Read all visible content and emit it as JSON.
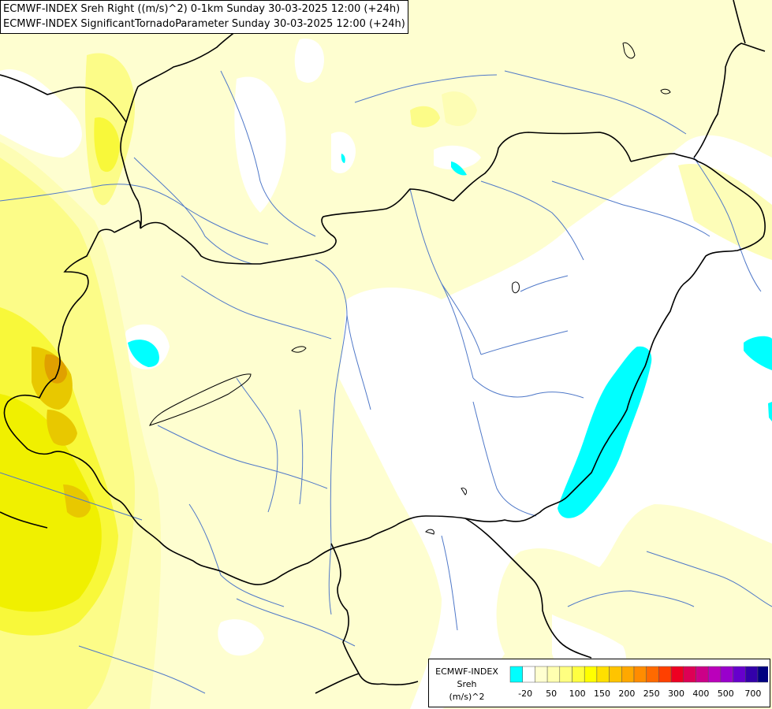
{
  "title": {
    "line1": "ECMWF-INDEX Sreh Right ((m/s)^2) 0-1km Sunday 30-03-2025 12:00 (+24h)",
    "line2": "ECMWF-INDEX SignificantTornadoParameter Sunday 30-03-2025 12:00 (+24h)"
  },
  "legend": {
    "line1": "ECMWF-INDEX",
    "line2": "Sreh",
    "line3": "(m/s)^2",
    "ticks": [
      "-20",
      "50",
      "100",
      "150",
      "200",
      "250",
      "300",
      "400",
      "500",
      "700"
    ],
    "colors": [
      "#00ffff",
      "#ffffff",
      "#ffffd0",
      "#ffffb0",
      "#ffff80",
      "#ffff40",
      "#ffff00",
      "#ffe000",
      "#ffc400",
      "#ffa800",
      "#ff8c00",
      "#ff6a00",
      "#ff4000",
      "#ee0022",
      "#dd0055",
      "#cc0088",
      "#bb00bb",
      "#9900cc",
      "#6600cc",
      "#3300aa",
      "#000080"
    ]
  },
  "fill_colors": {
    "very_pale": "#fefed0",
    "pale": "#fdfdb0",
    "light": "#fcfc88",
    "mid": "#f8f83a",
    "yellow": "#f0f000",
    "gold": "#e8c800",
    "orange": "#e0a000",
    "cyan": "#00ffff"
  }
}
